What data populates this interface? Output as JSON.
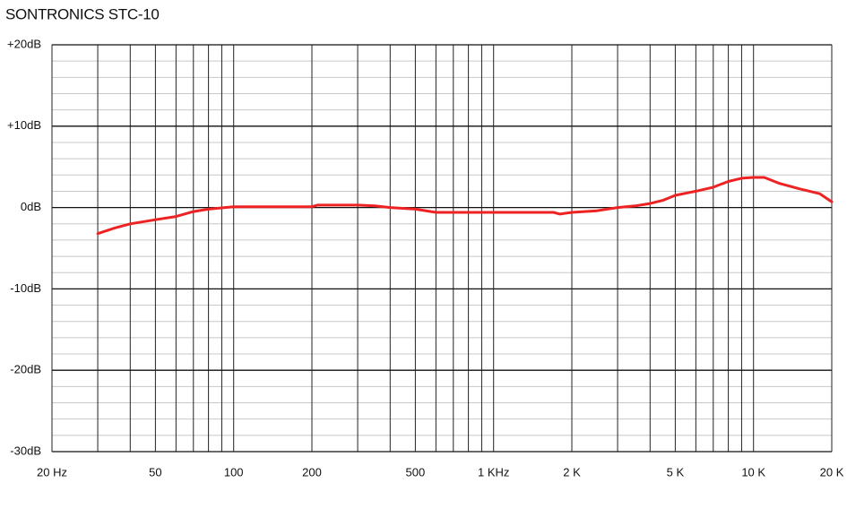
{
  "chart_data": {
    "type": "line",
    "title": "SONTRONICS STC-10",
    "log_x": true,
    "color": "#ee2222",
    "x": [
      30,
      35,
      40,
      50,
      60,
      70,
      80,
      100,
      200,
      210,
      300,
      350,
      400,
      500,
      600,
      1000,
      1700,
      1800,
      2000,
      2500,
      3000,
      3500,
      4000,
      4500,
      5000,
      6000,
      7000,
      8000,
      9000,
      10000,
      11000,
      12500,
      15000,
      18000,
      20000
    ],
    "values": [
      -3.2,
      -2.5,
      -2.0,
      -1.5,
      -1.1,
      -0.5,
      -0.2,
      0.1,
      0.1,
      0.3,
      0.3,
      0.2,
      0,
      -0.2,
      -0.6,
      -0.6,
      -0.6,
      -0.8,
      -0.6,
      -0.4,
      0,
      0.2,
      0.5,
      0.9,
      1.5,
      2.0,
      2.5,
      3.2,
      3.6,
      3.7,
      3.7,
      3.0,
      2.3,
      1.7,
      0.7
    ],
    "xlim": [
      20,
      20000
    ],
    "xticks": [
      {
        "value": 20,
        "label": "20 Hz"
      },
      50,
      100,
      200,
      500,
      {
        "value": 1000,
        "label": "1 KHz"
      },
      {
        "value": 2000,
        "label": "2 K"
      },
      {
        "value": 5000,
        "label": "5 K"
      },
      {
        "value": 10000,
        "label": "10 K"
      },
      {
        "value": 20000,
        "label": "20 K"
      }
    ],
    "minor_xgrid": [
      30,
      40,
      60,
      70,
      80,
      90,
      300,
      400,
      600,
      700,
      800,
      900,
      3000,
      4000,
      6000,
      7000,
      8000,
      9000
    ],
    "ylim": [
      -30,
      20
    ],
    "yticks": [
      {
        "value": 20,
        "label": "+20dB"
      },
      {
        "value": 10,
        "label": "+10dB"
      },
      {
        "value": 0,
        "label": "0dB"
      },
      {
        "value": -10,
        "label": "-10dB"
      },
      {
        "value": -20,
        "label": "-20dB"
      },
      {
        "value": -30,
        "label": "-30dB"
      }
    ],
    "minor_ygrid": [
      18,
      16,
      14,
      12,
      8,
      6,
      4,
      2,
      -2,
      -4,
      -6,
      -8,
      -12,
      -14,
      -16,
      -18,
      -22,
      -24,
      -26,
      -28
    ],
    "grid": true
  }
}
